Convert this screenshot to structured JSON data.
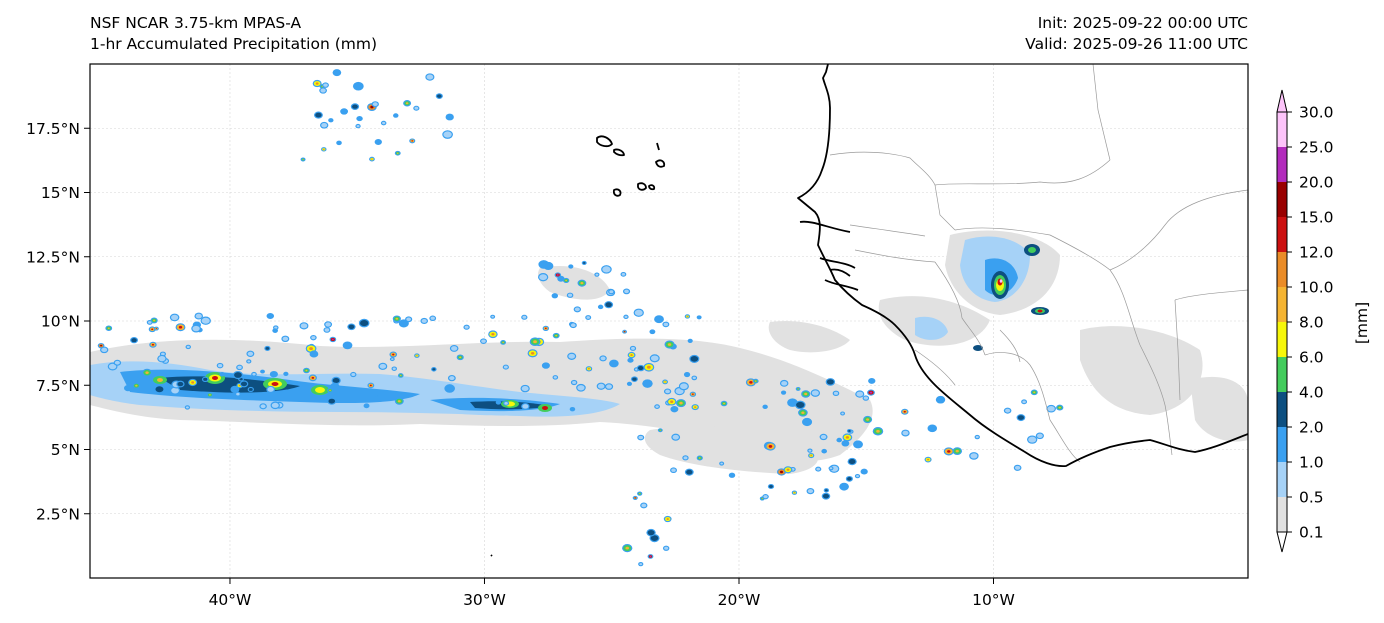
{
  "header": {
    "model_line": "NSF NCAR 3.75-km MPAS-A",
    "field_line": "1-hr Accumulated Precipitation (mm)",
    "init_line": "Init: 2025-09-22 00:00 UTC",
    "valid_line": "Valid: 2025-09-26 11:00 UTC"
  },
  "map": {
    "projection": "plate-carree",
    "lon_range": [
      -45.5,
      0
    ],
    "lat_range": [
      0,
      20
    ],
    "lon_ticks": [
      {
        "value": -40,
        "label": "40°W"
      },
      {
        "value": -30,
        "label": "30°W"
      },
      {
        "value": -20,
        "label": "20°W"
      },
      {
        "value": -10,
        "label": "10°W"
      }
    ],
    "lat_ticks": [
      {
        "value": 2.5,
        "label": "2.5°N"
      },
      {
        "value": 5,
        "label": "5°N"
      },
      {
        "value": 7.5,
        "label": "7.5°N"
      },
      {
        "value": 10,
        "label": "10°N"
      },
      {
        "value": 12.5,
        "label": "12.5°N"
      },
      {
        "value": 15,
        "label": "15°N"
      },
      {
        "value": 17.5,
        "label": "17.5°N"
      }
    ],
    "grid": true,
    "coastline_color": "#000000",
    "border_color": "#9a9a9a"
  },
  "colorbar": {
    "unit_label": "[mm]",
    "levels": [
      "0.1",
      "0.5",
      "1.0",
      "2.0",
      "4.0",
      "6.0",
      "8.0",
      "10.0",
      "12.0",
      "15.0",
      "20.0",
      "25.0",
      "30.0"
    ],
    "colors": [
      "#e1e1e1",
      "#a6d2f7",
      "#3aa0f0",
      "#0d4f80",
      "#43cc5c",
      "#f7f70a",
      "#f5b432",
      "#ea8c28",
      "#cc1010",
      "#990000",
      "#b22bbc",
      "#fdc4fa"
    ]
  }
}
